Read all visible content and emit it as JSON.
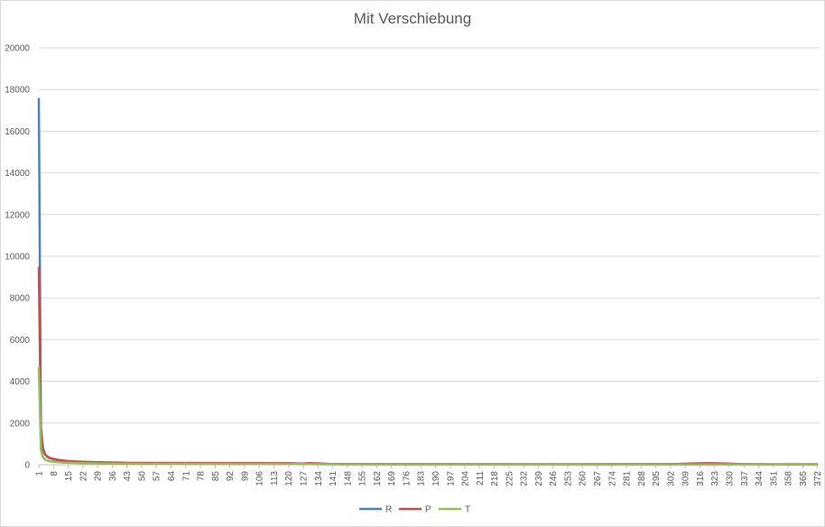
{
  "chart_data": {
    "type": "line",
    "title": "Mit Verschiebung",
    "xlabel": "",
    "ylabel": "",
    "ylim": [
      0,
      20000
    ],
    "y_ticks": [
      0,
      2000,
      4000,
      6000,
      8000,
      10000,
      12000,
      14000,
      16000,
      18000,
      20000
    ],
    "x_range": [
      1,
      373
    ],
    "x_ticks": [
      1,
      8,
      15,
      22,
      29,
      36,
      43,
      50,
      57,
      64,
      71,
      78,
      85,
      92,
      99,
      106,
      113,
      120,
      127,
      134,
      141,
      148,
      155,
      162,
      169,
      176,
      183,
      190,
      197,
      204,
      211,
      218,
      225,
      232,
      239,
      246,
      253,
      260,
      267,
      274,
      281,
      288,
      295,
      302,
      309,
      316,
      323,
      330,
      337,
      344,
      351,
      358,
      365,
      372
    ],
    "grid": true,
    "legend_position": "bottom",
    "series": [
      {
        "name": "R",
        "color": "#4f81bd",
        "points": [
          [
            1,
            17600
          ],
          [
            2,
            1800
          ],
          [
            3,
            800
          ],
          [
            4,
            500
          ],
          [
            5,
            380
          ],
          [
            6,
            320
          ],
          [
            8,
            260
          ],
          [
            10,
            220
          ],
          [
            13,
            180
          ],
          [
            16,
            150
          ],
          [
            20,
            130
          ],
          [
            25,
            110
          ],
          [
            30,
            100
          ],
          [
            36,
            90
          ],
          [
            43,
            80
          ],
          [
            60,
            75
          ],
          [
            90,
            70
          ],
          [
            120,
            68
          ],
          [
            135,
            40
          ],
          [
            150,
            30
          ],
          [
            200,
            25
          ],
          [
            250,
            22
          ],
          [
            300,
            25
          ],
          [
            310,
            40
          ],
          [
            320,
            60
          ],
          [
            330,
            40
          ],
          [
            340,
            25
          ],
          [
            372,
            25
          ]
        ]
      },
      {
        "name": "P",
        "color": "#c0504d",
        "points": [
          [
            1,
            9500
          ],
          [
            2,
            1500
          ],
          [
            3,
            700
          ],
          [
            4,
            480
          ],
          [
            5,
            400
          ],
          [
            6,
            340
          ],
          [
            8,
            280
          ],
          [
            10,
            240
          ],
          [
            13,
            200
          ],
          [
            16,
            170
          ],
          [
            20,
            150
          ],
          [
            25,
            130
          ],
          [
            30,
            120
          ],
          [
            36,
            110
          ],
          [
            43,
            90
          ],
          [
            60,
            85
          ],
          [
            90,
            80
          ],
          [
            120,
            78
          ],
          [
            125,
            45
          ],
          [
            130,
            75
          ],
          [
            135,
            60
          ],
          [
            140,
            30
          ],
          [
            150,
            25
          ],
          [
            200,
            22
          ],
          [
            250,
            20
          ],
          [
            305,
            30
          ],
          [
            312,
            60
          ],
          [
            320,
            75
          ],
          [
            328,
            60
          ],
          [
            335,
            30
          ],
          [
            345,
            20
          ],
          [
            372,
            20
          ]
        ]
      },
      {
        "name": "T",
        "color": "#9bbb59",
        "points": [
          [
            1,
            4700
          ],
          [
            2,
            700
          ],
          [
            3,
            350
          ],
          [
            4,
            250
          ],
          [
            5,
            200
          ],
          [
            6,
            170
          ],
          [
            8,
            140
          ],
          [
            10,
            120
          ],
          [
            13,
            100
          ],
          [
            16,
            90
          ],
          [
            20,
            80
          ],
          [
            25,
            70
          ],
          [
            30,
            60
          ],
          [
            36,
            55
          ],
          [
            43,
            50
          ],
          [
            60,
            45
          ],
          [
            90,
            40
          ],
          [
            120,
            38
          ],
          [
            150,
            15
          ],
          [
            200,
            12
          ],
          [
            250,
            10
          ],
          [
            300,
            12
          ],
          [
            340,
            15
          ],
          [
            355,
            30
          ],
          [
            360,
            45
          ],
          [
            365,
            30
          ],
          [
            372,
            40
          ]
        ]
      }
    ]
  }
}
